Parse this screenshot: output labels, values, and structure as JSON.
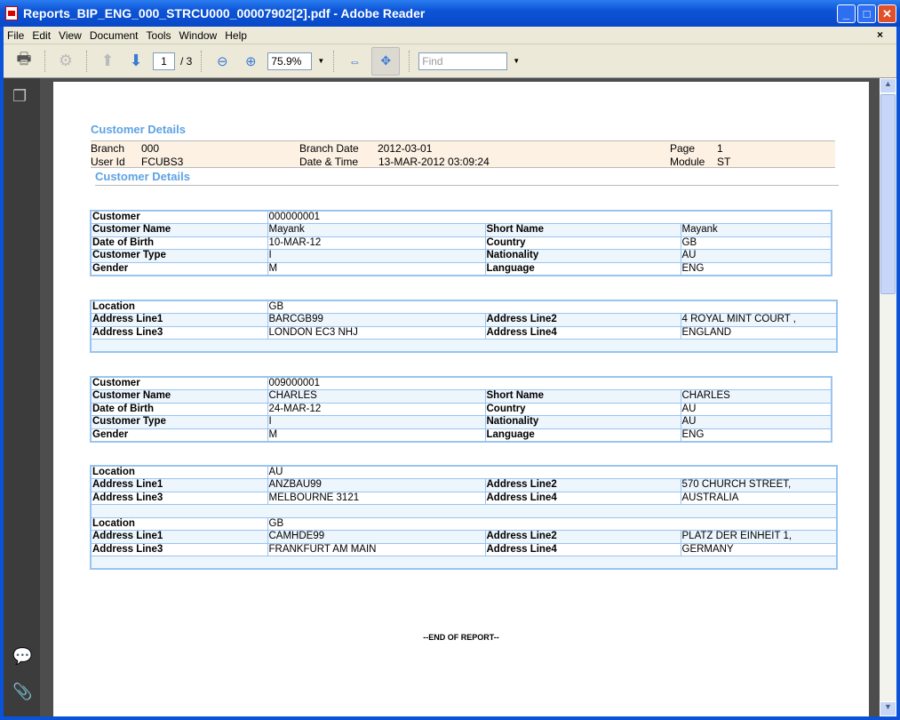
{
  "window": {
    "title": "Reports_BIP_ENG_000_STRCU000_00007902[2].pdf - Adobe Reader"
  },
  "menu": [
    "File",
    "Edit",
    "View",
    "Document",
    "Tools",
    "Window",
    "Help"
  ],
  "toolbar": {
    "page_current": "1",
    "page_total": "/ 3",
    "zoom": "75.9%",
    "find_placeholder": "Find"
  },
  "report": {
    "title": "Customer Details",
    "header": {
      "branch_label": "Branch",
      "branch": "000",
      "branch_date_label": "Branch Date",
      "branch_date": "2012-03-01",
      "page_label": "Page",
      "page": "1",
      "user_label": "User Id",
      "user": "FCUBS3",
      "datetime_label": "Date & Time",
      "datetime": "13-MAR-2012 03:09:24",
      "module_label": "Module",
      "module": "ST"
    },
    "subtitle": "Customer Details",
    "tables": [
      {
        "rows": [
          [
            "Customer",
            "000000001"
          ],
          [
            "Customer Name",
            "Mayank",
            "Short Name",
            "Mayank"
          ],
          [
            "Date of Birth",
            "10-MAR-12",
            "Country",
            "GB"
          ],
          [
            "Customer Type",
            "I",
            "Nationality",
            "AU"
          ],
          [
            "Gender",
            "M",
            "Language",
            "ENG"
          ]
        ]
      },
      {
        "rows": [
          [
            "Location",
            "GB"
          ],
          [
            "Address Line1",
            "BARCGB99",
            "Address Line2",
            "4 ROYAL MINT COURT ,"
          ],
          [
            "Address Line3",
            "LONDON EC3 NHJ",
            "Address Line4",
            "ENGLAND"
          ],
          []
        ]
      },
      {
        "rows": [
          [
            "Customer",
            "009000001"
          ],
          [
            "Customer Name",
            "CHARLES",
            "Short Name",
            "CHARLES"
          ],
          [
            "Date of Birth",
            "24-MAR-12",
            "Country",
            "AU"
          ],
          [
            "Customer Type",
            "I",
            "Nationality",
            "AU"
          ],
          [
            "Gender",
            "M",
            "Language",
            "ENG"
          ]
        ]
      },
      {
        "rows": [
          [
            "Location",
            "AU"
          ],
          [
            "Address Line1",
            "ANZBAU99",
            "Address Line2",
            "570 CHURCH STREET,"
          ],
          [
            "Address Line3",
            "MELBOURNE 3121",
            "Address Line4",
            "AUSTRALIA"
          ],
          [],
          [
            "Location",
            "GB"
          ],
          [
            "Address Line1",
            "CAMHDE99",
            "Address Line2",
            "PLATZ DER EINHEIT 1,"
          ],
          [
            "Address Line3",
            "FRANKFURT AM MAIN",
            "Address Line4",
            "GERMANY"
          ],
          []
        ]
      }
    ],
    "end": "--END OF REPORT--"
  }
}
